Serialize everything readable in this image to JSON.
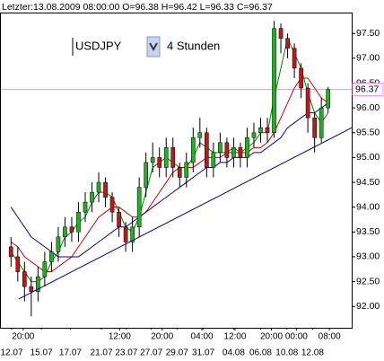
{
  "chart_data": {
    "type": "candlestick",
    "title": "Letzter:13.08.2009 08:00:00 O=96.38 H=96.42 L=96.33 C=96.37",
    "symbol": "USDJPY",
    "timeframe": "4 Stunden",
    "xlim": [
      -1.5,
      50.5
    ],
    "ylim": [
      91.57,
      97.92
    ],
    "yticks": [
      {
        "value": 92,
        "label": "92.00"
      },
      {
        "value": 92.5,
        "label": "92.50"
      },
      {
        "value": 93,
        "label": "93.00"
      },
      {
        "value": 93.5,
        "label": "93.50"
      },
      {
        "value": 94,
        "label": "94.00"
      },
      {
        "value": 94.5,
        "label": "94.50"
      },
      {
        "value": 95,
        "label": "95.00"
      },
      {
        "value": 95.5,
        "label": "95.50"
      },
      {
        "value": 96,
        "label": "96.00"
      },
      {
        "value": 96.5,
        "label": "96.50"
      },
      {
        "value": 97,
        "label": "97.00"
      },
      {
        "value": 97.5,
        "label": "97.50"
      }
    ],
    "xticks": [
      {
        "value": 1.8,
        "label": "20:00"
      },
      {
        "value": 16.1,
        "label": "12:00"
      },
      {
        "value": 22.4,
        "label": "20:00"
      },
      {
        "value": 28.3,
        "label": "04:00"
      },
      {
        "value": 33.2,
        "label": "12:00"
      },
      {
        "value": 38.6,
        "label": "20:00"
      },
      {
        "value": 42.3,
        "label": "00:00"
      },
      {
        "value": 47.2,
        "label": "08:00"
      }
    ],
    "xticks_dates": [
      {
        "value": 0.1,
        "label": "12.07"
      },
      {
        "value": 4.5,
        "label": "15.07"
      },
      {
        "value": 8.8,
        "label": "17.07"
      },
      {
        "value": 13.4,
        "label": "21.07"
      },
      {
        "value": 17.1,
        "label": "23.07"
      },
      {
        "value": 20.8,
        "label": "27.07"
      },
      {
        "value": 24.6,
        "label": "29.07"
      },
      {
        "value": 28.5,
        "label": "31.07"
      },
      {
        "value": 33.0,
        "label": "04.08"
      },
      {
        "value": 37.0,
        "label": "06.08"
      },
      {
        "value": 40.9,
        "label": "10.08"
      },
      {
        "value": 44.7,
        "label": "12.08"
      }
    ],
    "up_color": "#22b022",
    "down_color": "#c01818",
    "open": [
      93.2,
      93.0,
      92.7,
      92.4,
      92.3,
      92.6,
      92.9,
      93.1,
      93.4,
      93.6,
      93.5,
      93.9,
      94.1,
      94.3,
      94.5,
      94.2,
      93.9,
      93.6,
      93.3,
      93.6,
      94.4,
      94.9,
      95.0,
      94.8,
      95.2,
      94.8,
      94.6,
      94.9,
      95.4,
      95.5,
      94.8,
      95.1,
      95.3,
      95.0,
      95.2,
      95.0,
      95.4,
      95.5,
      95.6,
      95.5,
      97.6,
      97.4,
      97.2,
      96.8,
      96.4,
      95.8,
      95.4,
      96.0
    ],
    "high": [
      93.4,
      93.2,
      92.9,
      92.6,
      92.8,
      93.1,
      93.3,
      93.6,
      93.8,
      93.8,
      94.1,
      94.3,
      94.5,
      94.7,
      94.6,
      94.3,
      94.0,
      93.7,
      93.8,
      94.6,
      95.1,
      95.3,
      95.2,
      95.4,
      95.4,
      94.9,
      95.1,
      95.6,
      95.8,
      95.6,
      95.3,
      95.5,
      95.4,
      95.4,
      95.3,
      95.6,
      95.7,
      95.8,
      95.8,
      97.75,
      97.7,
      97.5,
      97.3,
      96.9,
      96.5,
      95.9,
      96.2,
      96.42
    ],
    "low": [
      92.8,
      92.5,
      92.1,
      91.8,
      92.1,
      92.4,
      92.7,
      92.9,
      93.2,
      93.3,
      93.3,
      93.7,
      93.9,
      94.1,
      94.0,
      93.7,
      93.4,
      93.1,
      93.1,
      93.4,
      94.2,
      94.7,
      94.6,
      94.6,
      94.6,
      94.4,
      94.4,
      94.7,
      95.2,
      94.6,
      94.6,
      94.9,
      94.8,
      94.8,
      94.8,
      94.8,
      95.2,
      95.3,
      95.3,
      95.4,
      97.1,
      97.0,
      96.6,
      96.2,
      95.5,
      95.1,
      95.3,
      95.9
    ],
    "close": [
      93.0,
      92.7,
      92.4,
      92.3,
      92.6,
      92.9,
      93.1,
      93.4,
      93.6,
      93.5,
      93.9,
      94.1,
      94.3,
      94.5,
      94.2,
      93.9,
      93.6,
      93.3,
      93.6,
      94.4,
      94.9,
      95.0,
      94.8,
      95.2,
      94.8,
      94.6,
      94.9,
      95.4,
      95.5,
      94.8,
      95.1,
      95.3,
      95.0,
      95.2,
      95.0,
      95.4,
      95.5,
      95.6,
      95.5,
      97.6,
      97.4,
      97.2,
      96.8,
      96.4,
      95.8,
      95.4,
      96.0,
      96.37
    ],
    "series": [
      {
        "color": "#008000",
        "values": [
          93.1,
          92.9,
          92.7,
          92.5,
          92.5,
          92.6,
          92.9,
          93.1,
          93.4,
          93.5,
          93.7,
          93.8,
          94.1,
          94.3,
          94.3,
          94.2,
          93.9,
          93.6,
          93.5,
          93.8,
          94.3,
          94.8,
          94.9,
          95.0,
          94.9,
          94.8,
          94.8,
          95.0,
          95.3,
          95.2,
          95.1,
          95.1,
          95.1,
          95.2,
          95.1,
          95.2,
          95.3,
          95.5,
          95.5,
          96.2,
          96.8,
          97.4,
          97.1,
          96.8,
          96.3,
          95.9,
          95.7,
          95.9
        ]
      },
      {
        "color": "#d00000",
        "values": [
          93.3,
          93.2,
          93.0,
          92.9,
          92.8,
          92.7,
          92.7,
          92.8,
          92.9,
          93.0,
          93.2,
          93.4,
          93.6,
          93.8,
          93.9,
          94.0,
          94.0,
          93.9,
          93.8,
          93.8,
          93.9,
          94.1,
          94.3,
          94.5,
          94.7,
          94.8,
          94.8,
          94.8,
          94.9,
          95.0,
          95.0,
          95.0,
          95.1,
          95.1,
          95.1,
          95.1,
          95.2,
          95.2,
          95.3,
          95.5,
          95.8,
          96.1,
          96.4,
          96.6,
          96.6,
          96.4,
          96.2,
          96.1
        ]
      },
      {
        "color": "#0000c0",
        "values": [
          94.0,
          93.8,
          93.6,
          93.4,
          93.3,
          93.2,
          93.1,
          93.0,
          93.0,
          93.0,
          93.0,
          93.1,
          93.2,
          93.3,
          93.4,
          93.5,
          93.6,
          93.6,
          93.7,
          93.8,
          93.9,
          94.0,
          94.1,
          94.2,
          94.3,
          94.4,
          94.5,
          94.6,
          94.7,
          94.8,
          94.8,
          94.9,
          94.9,
          95.0,
          95.0,
          95.0,
          95.1,
          95.1,
          95.2,
          95.3,
          95.4,
          95.6,
          95.7,
          95.8,
          95.9,
          95.9,
          96.0,
          96.1
        ]
      }
    ],
    "trendline": {
      "color": "#000090",
      "x": [
        1.15,
        50.5
      ],
      "values": [
        92.15,
        95.6
      ]
    },
    "hline": {
      "color": "#ff80ff",
      "value": 96.37
    }
  }
}
